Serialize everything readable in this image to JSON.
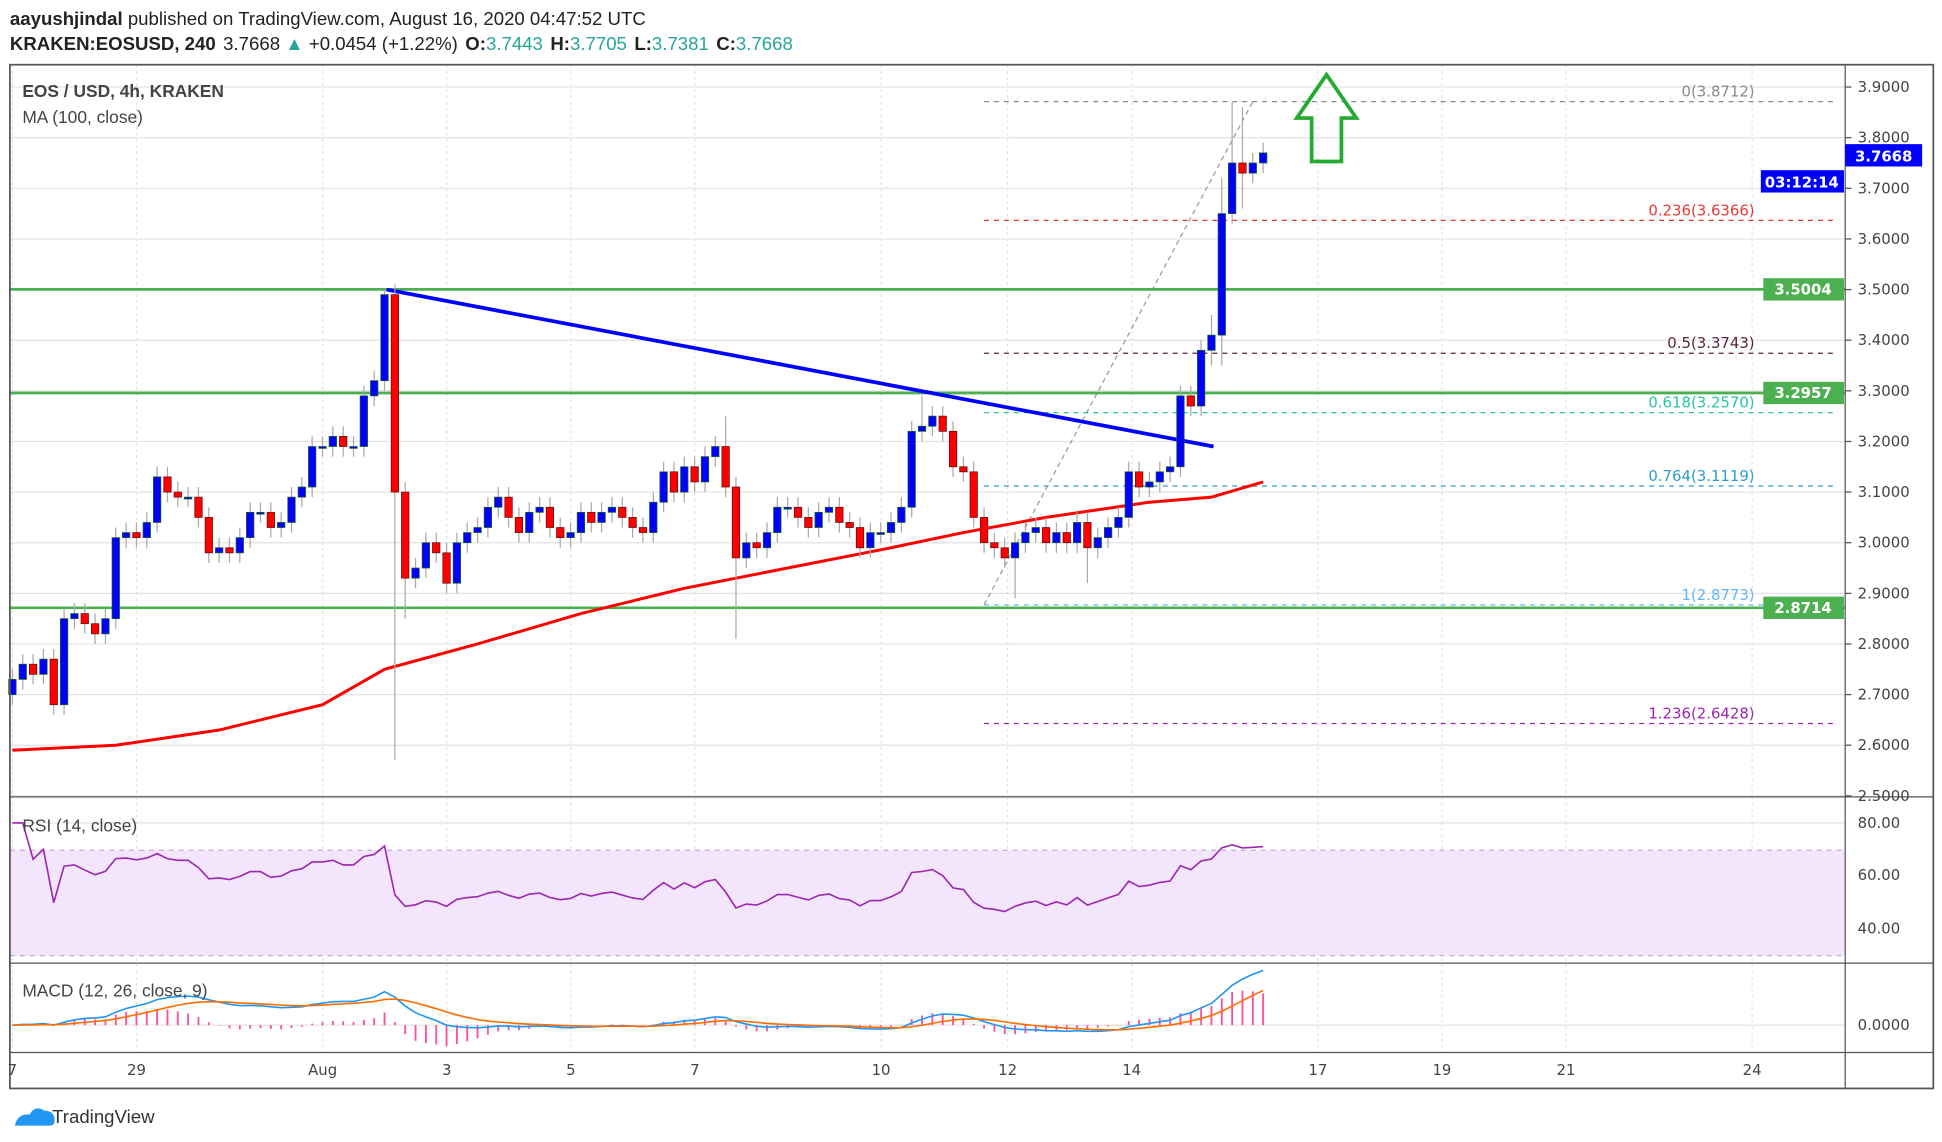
{
  "header": {
    "author": "aayushjindal",
    "published": " published on TradingView.com, August 16, 2020 04:47:52 UTC",
    "symbol": "KRAKEN:EOSUSD, 240",
    "last": "3.7668",
    "change": "+0.0454 (+1.22%)",
    "o_label": "O:",
    "o": "3.7443",
    "h_label": "H:",
    "h": "3.7705",
    "l_label": "L:",
    "l": "3.7381",
    "c_label": "C:",
    "c": "3.7668"
  },
  "legend": {
    "title": "EOS / USD, 4h, KRAKEN",
    "ma": "MA (100, close)",
    "rsi": "RSI (14, close)",
    "macd": "MACD (12, 26, close, 9)"
  },
  "footer": {
    "brand": "TradingView"
  },
  "colors": {
    "up": "#0000ff",
    "down": "#ff0000",
    "ma": "#ff0000",
    "support": "#4caf50",
    "trendline": "#0000ff",
    "rsi": "#9c27b0",
    "macd": "#2196f3",
    "signal": "#ff6d00",
    "hist": "#ff4fa0",
    "arrow": "#22aa33"
  },
  "chart_data": {
    "type": "candlestick",
    "price_axis": {
      "ticks": [
        "3.9000",
        "3.8000",
        "3.7000",
        "3.6000",
        "3.5000",
        "3.4000",
        "3.3000",
        "3.2000",
        "3.1000",
        "3.0000",
        "2.9000",
        "2.8000",
        "2.7000",
        "2.6000",
        "2.5000"
      ],
      "range": [
        2.5,
        3.9
      ]
    },
    "time_axis": {
      "ticks": [
        "7",
        "29",
        "Aug",
        "3",
        "5",
        "7",
        "10",
        "12",
        "14",
        "17",
        "19",
        "21",
        "24"
      ]
    },
    "interval": "4h",
    "first_open": 2.7,
    "closes": [
      2.73,
      2.76,
      2.74,
      2.77,
      2.68,
      2.85,
      2.86,
      2.84,
      2.82,
      2.85,
      3.01,
      3.02,
      3.01,
      3.04,
      3.13,
      3.1,
      3.09,
      3.09,
      3.05,
      2.98,
      2.99,
      2.98,
      3.01,
      3.06,
      3.06,
      3.03,
      3.04,
      3.09,
      3.11,
      3.19,
      3.19,
      3.21,
      3.19,
      3.19,
      3.29,
      3.32,
      3.49,
      3.1,
      2.93,
      2.95,
      3.0,
      2.98,
      2.92,
      3.0,
      3.02,
      3.03,
      3.07,
      3.09,
      3.05,
      3.02,
      3.06,
      3.07,
      3.03,
      3.01,
      3.02,
      3.06,
      3.04,
      3.06,
      3.07,
      3.05,
      3.03,
      3.02,
      3.08,
      3.14,
      3.1,
      3.15,
      3.12,
      3.17,
      3.19,
      3.11,
      2.97,
      3.0,
      2.99,
      3.02,
      3.07,
      3.07,
      3.05,
      3.03,
      3.06,
      3.07,
      3.04,
      3.03,
      2.99,
      3.02,
      3.02,
      3.04,
      3.07,
      3.22,
      3.23,
      3.25,
      3.22,
      3.15,
      3.14,
      3.05,
      3.0,
      2.99,
      2.97,
      3.0,
      3.02,
      3.03,
      3.0,
      3.02,
      3.0,
      3.04,
      2.99,
      3.01,
      3.03,
      3.05,
      3.14,
      3.11,
      3.12,
      3.14,
      3.15,
      3.29,
      3.27,
      3.38,
      3.41,
      3.65,
      3.75,
      3.73,
      3.75,
      3.77
    ],
    "wick_extremes": {
      "36": {
        "high": 3.5
      },
      "37": {
        "low": 2.57
      },
      "38": {
        "low": 2.85
      },
      "69": {
        "high": 3.25
      },
      "70": {
        "low": 2.81
      },
      "88": {
        "high": 3.29
      },
      "97": {
        "low": 2.89
      },
      "104": {
        "low": 2.92
      },
      "116": {
        "high": 3.45,
        "low": 3.35
      },
      "117": {
        "high": 3.72,
        "low": 3.35
      },
      "118": {
        "high": 3.87
      },
      "119": {
        "high": 3.86,
        "low": 3.66
      }
    },
    "ma100": [
      [
        0,
        2.59
      ],
      [
        10,
        2.6
      ],
      [
        20,
        2.63
      ],
      [
        30,
        2.68
      ],
      [
        36,
        2.75
      ],
      [
        45,
        2.8
      ],
      [
        55,
        2.86
      ],
      [
        65,
        2.91
      ],
      [
        75,
        2.95
      ],
      [
        85,
        2.99
      ],
      [
        92,
        3.02
      ],
      [
        100,
        3.05
      ],
      [
        110,
        3.08
      ],
      [
        116,
        3.09
      ],
      [
        121,
        3.12
      ]
    ],
    "support_levels": [
      {
        "value": 3.5004,
        "label": "3.5004"
      },
      {
        "value": 3.2957,
        "label": "3.2957"
      },
      {
        "value": 2.8714,
        "label": "2.8714"
      }
    ],
    "trendline": {
      "from": [
        35,
        3.5
      ],
      "to": [
        115,
        3.19
      ]
    },
    "fibonacci": {
      "from": [
        94,
        2.8773
      ],
      "to": [
        120,
        3.8712
      ],
      "levels": [
        {
          "label": "0(3.8712)",
          "value": 3.8712,
          "color": "#8a8a8a"
        },
        {
          "label": "0.236(3.6366)",
          "value": 3.6366,
          "color": "#e53935"
        },
        {
          "label": "0.5(3.3743)",
          "value": 3.3743,
          "color": "#5b2340"
        },
        {
          "label": "0.618(3.2570)",
          "value": 3.257,
          "color": "#26c6a0"
        },
        {
          "label": "0.764(3.1119)",
          "value": 3.1119,
          "color": "#2f9bd0"
        },
        {
          "label": "1(2.8773)",
          "value": 2.8773,
          "color": "#64b5f6"
        },
        {
          "label": "1.236(2.6428)",
          "value": 2.6428,
          "color": "#9c27b0"
        }
      ]
    },
    "last_price": {
      "label": "3.7668",
      "value": 3.7668,
      "countdown": "03:12:14"
    },
    "rsi": {
      "ticks": [
        "80.00",
        "60.00",
        "40.00"
      ],
      "band": [
        30,
        70
      ]
    },
    "macd": {
      "ticks": [
        "0.0000"
      ]
    }
  }
}
